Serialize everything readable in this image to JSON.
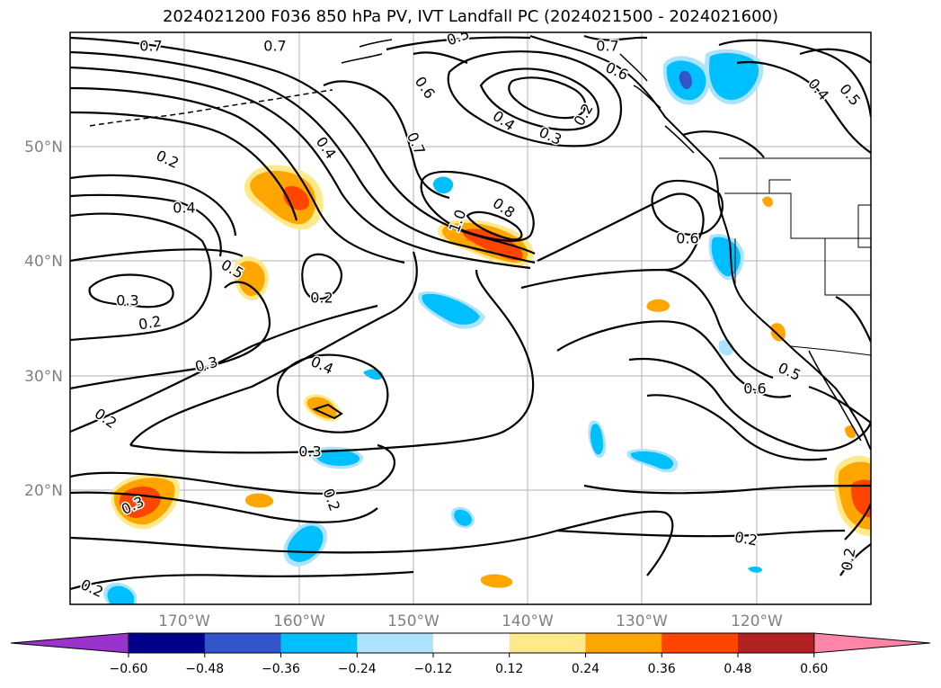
{
  "title": "2024021200 F036 850 hPa PV, IVT Landfall PC (2024021500 - 2024021600)",
  "map": {
    "lat_ticks": [
      "50°N",
      "40°N",
      "30°N",
      "20°N"
    ],
    "lon_ticks": [
      "170°W",
      "160°W",
      "150°W",
      "140°W",
      "130°W",
      "120°W"
    ],
    "contour_labels": [
      "0.7",
      "0.7",
      "0.5",
      "0.7",
      "0.6",
      "0.6",
      "0.4",
      "0.2",
      "0.3",
      "0.4",
      "0.5",
      "0.2",
      "0.4",
      "0.4",
      "0.7",
      "0.8",
      "1.0",
      "0.5",
      "0.6",
      "0.2",
      "0.3",
      "0.2",
      "0.3",
      "0.4",
      "0.3",
      "0.2",
      "0.6",
      "0.5",
      "0.2",
      "0.3",
      "0.2",
      "0.2",
      "0.2"
    ],
    "land_color": "#ffffff",
    "contour_color": "#000000",
    "grid_color": "#b0b0b0"
  },
  "colorbar": {
    "ticks": [
      "−0.60",
      "−0.48",
      "−0.36",
      "−0.24",
      "−0.12",
      "0.12",
      "0.24",
      "0.36",
      "0.48",
      "0.60"
    ],
    "colors": [
      "#9933cc",
      "#00008b",
      "#3355cc",
      "#00bfff",
      "#aee3ff",
      "#ffffff",
      "#ffe98a",
      "#ffa500",
      "#ff4500",
      "#b22222",
      "#ff85a8"
    ]
  }
}
